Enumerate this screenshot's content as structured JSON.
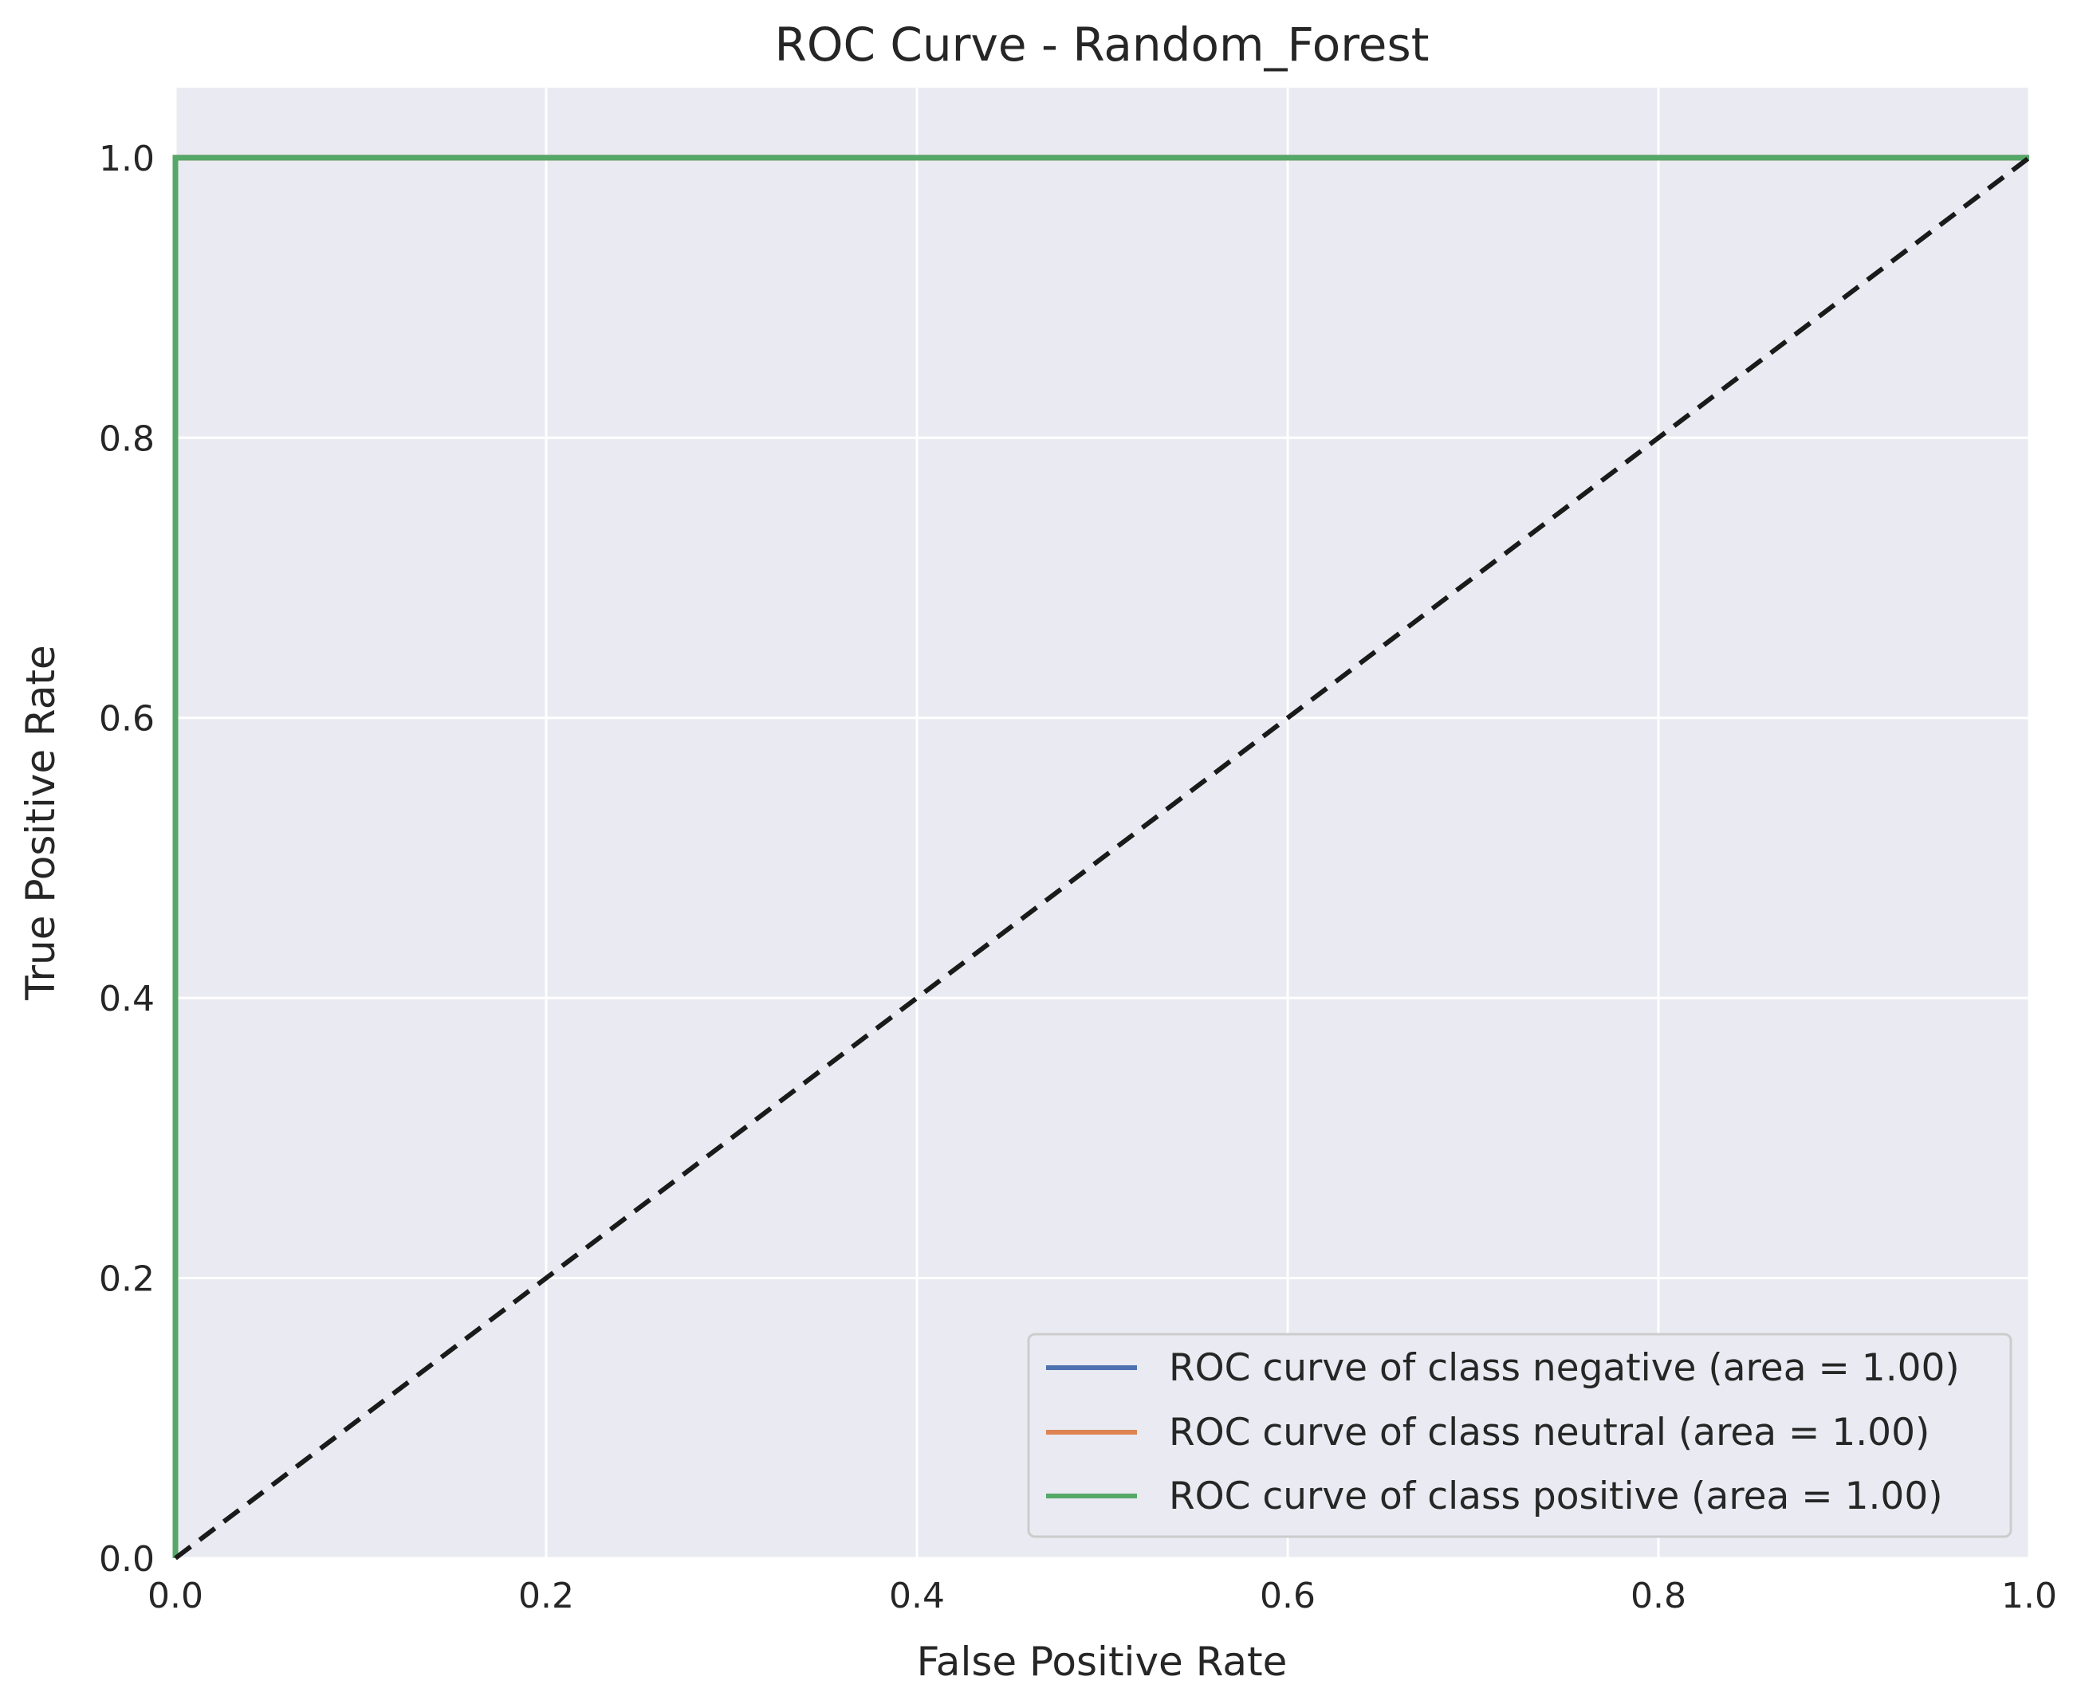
{
  "colors": {
    "background": "#eaeaf2",
    "grid": "#ffffff",
    "negative": "#4c72b0",
    "neutral": "#dd8452",
    "positive": "#55a868",
    "diagonal": "#1a1a1a"
  },
  "chart_data": {
    "type": "line",
    "title": "ROC Curve - Random_Forest",
    "xlabel": "False Positive Rate",
    "ylabel": "True Positive Rate",
    "xlim": [
      0.0,
      1.0
    ],
    "ylim": [
      0.0,
      1.05
    ],
    "grid": true,
    "legend_position": "lower right",
    "xticks": [
      "0.0",
      "0.2",
      "0.4",
      "0.6",
      "0.8",
      "1.0"
    ],
    "yticks": [
      "0.0",
      "0.2",
      "0.4",
      "0.6",
      "0.8",
      "1.0"
    ],
    "series": [
      {
        "name": "ROC curve of class negative (area = 1.00)",
        "color": "#4c72b0",
        "x": [
          0.0,
          0.0,
          1.0
        ],
        "y": [
          0.0,
          1.0,
          1.0
        ]
      },
      {
        "name": "ROC curve of class neutral (area = 1.00)",
        "color": "#dd8452",
        "x": [
          0.0,
          0.0,
          1.0
        ],
        "y": [
          0.0,
          1.0,
          1.0
        ]
      },
      {
        "name": "ROC curve of class positive (area = 1.00)",
        "color": "#55a868",
        "x": [
          0.0,
          0.0,
          1.0
        ],
        "y": [
          0.0,
          1.0,
          1.0
        ]
      }
    ],
    "reference_line": {
      "x": [
        0.0,
        1.0
      ],
      "y": [
        0.0,
        1.0
      ],
      "style": "dashed",
      "color": "#1a1a1a"
    }
  }
}
